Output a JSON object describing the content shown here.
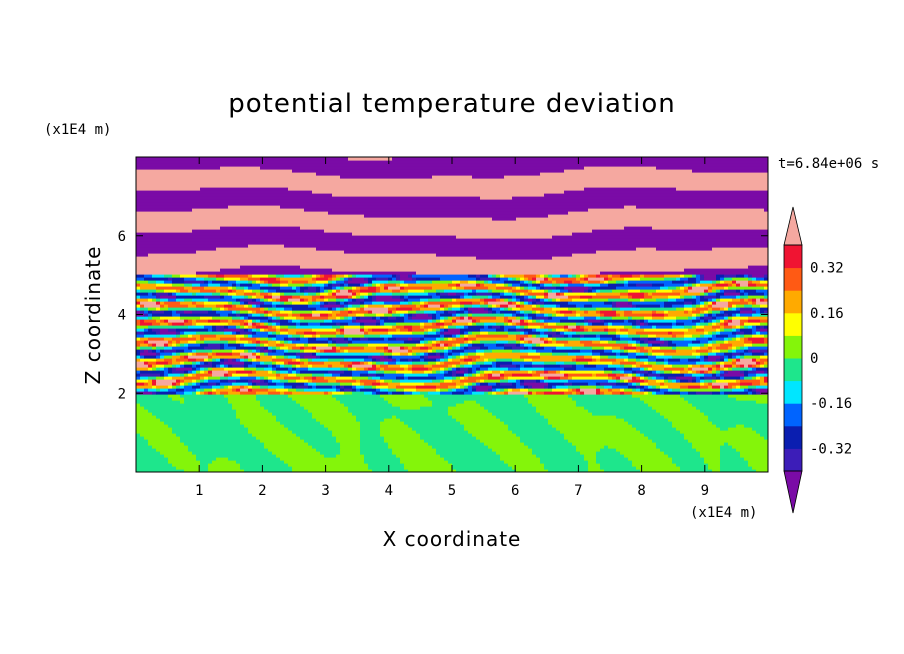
{
  "chart_data": {
    "type": "heatmap",
    "title": "potential temperature deviation",
    "xlabel": "X coordinate",
    "ylabel": "Z coordinate",
    "x_unit": "(x1E4 m)",
    "y_unit": "(x1E4 m)",
    "time_label": "t=6.84e+06 s",
    "xlim": [
      0,
      10
    ],
    "ylim": [
      0,
      8
    ],
    "x_ticks": [
      1,
      2,
      3,
      4,
      5,
      6,
      7,
      8,
      9
    ],
    "y_ticks": [
      2,
      4,
      6
    ],
    "x_tick_labels": [
      "1",
      "2",
      "3",
      "4",
      "5",
      "6",
      "7",
      "8",
      "9"
    ],
    "y_tick_labels": [
      "2",
      "4",
      "6"
    ],
    "colorbar": {
      "levels": [
        -0.4,
        -0.32,
        -0.24,
        -0.16,
        -0.08,
        0,
        0.08,
        0.16,
        0.24,
        0.32,
        0.4
      ],
      "tick_values": [
        0.32,
        0.16,
        0,
        -0.16,
        -0.32
      ],
      "tick_labels": [
        "0.32",
        "0.16",
        "0",
        "-0.16",
        "-0.32"
      ],
      "colors": [
        "#7a0ba6",
        "#3c1db8",
        "#0a1eb0",
        "#0064ff",
        "#00e6ff",
        "#1ee68c",
        "#84f50a",
        "#ffff00",
        "#ffaa00",
        "#ff5a14",
        "#f01432",
        "#f5a8a0"
      ],
      "extend": "both"
    },
    "regions": [
      {
        "z_range": [
          0,
          2
        ],
        "description": "lower layer",
        "value_range": [
          -0.04,
          0.04
        ]
      },
      {
        "z_range": [
          2,
          5
        ],
        "description": "mixed layer",
        "value_range": [
          -0.4,
          0.4
        ]
      },
      {
        "z_range": [
          5,
          8
        ],
        "description": "upper layer",
        "value_range": [
          -0.4,
          0.4
        ]
      }
    ]
  },
  "colors": {
    "frame": "#000000",
    "background": "#ffffff"
  }
}
